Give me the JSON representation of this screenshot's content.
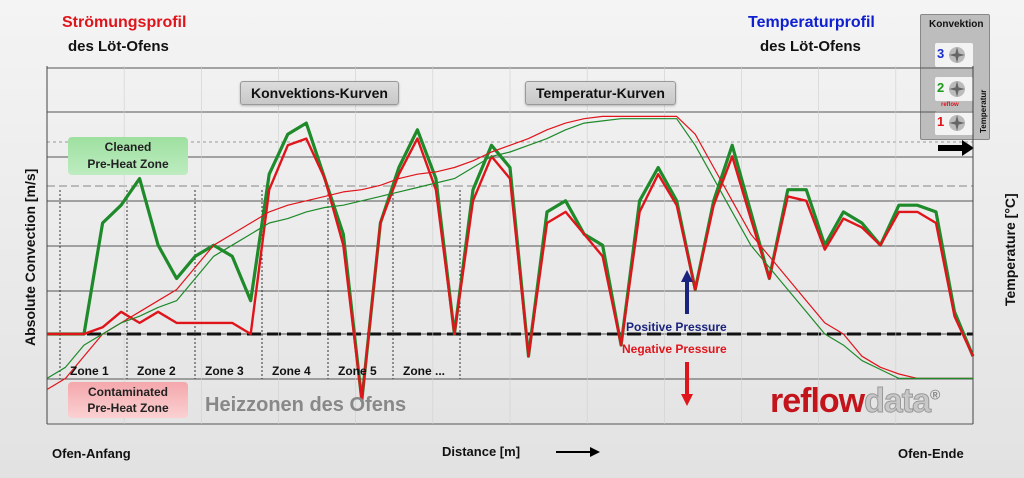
{
  "header": {
    "left_title": "Strömungsprofil",
    "left_sub": "des Löt-Ofens",
    "right_title": "Temperaturprofil",
    "right_sub": "des Löt-Ofens"
  },
  "legend_box": {
    "title": "Konvektion",
    "side_label": "Temperatur",
    "fans": [
      "3",
      "2",
      "1"
    ],
    "mid_label": "reflow",
    "colors": [
      "#1a2fd0",
      "#1e9a1e",
      "#e0141b"
    ]
  },
  "callouts": {
    "convection": "Konvektions-Kurven",
    "temperature": "Temperatur-Kurven",
    "cleaned": [
      "Cleaned",
      "Pre-Heat Zone"
    ],
    "contaminated": [
      "Contaminated",
      "Pre-Heat Zone"
    ],
    "heizzonen": "Heizzonen des Ofens",
    "positive": "Positive Pressure",
    "negative": "Negative Pressure"
  },
  "brand": {
    "part1": "reflow",
    "part2": "data",
    "mark": "®"
  },
  "footer": {
    "start": "Ofen-Anfang",
    "distance": "Distance [m]",
    "end": "Ofen-Ende"
  },
  "chart_data": {
    "type": "line",
    "xlabel": "Distance [m]",
    "ylabel": "Absolute Convection [m/s]",
    "ylabel_right": "Temperature  [°C]",
    "zones": [
      "Zone 1",
      "Zone 2",
      "Zone 3",
      "Zone 4",
      "Zone 5",
      "Zone ..."
    ],
    "colors": {
      "green": "#1e8a2a",
      "red": "#e0141b"
    },
    "x": [
      0,
      2,
      4,
      6,
      8,
      10,
      12,
      14,
      16,
      18,
      20,
      22,
      24,
      26,
      28,
      30,
      32,
      34,
      36,
      38,
      40,
      42,
      44,
      46,
      48,
      50,
      52,
      54,
      56,
      58,
      60,
      62,
      64,
      66,
      68,
      70,
      72,
      74,
      76,
      78,
      80,
      82,
      84,
      86,
      88,
      90,
      92,
      94,
      96,
      98,
      100
    ],
    "series": [
      {
        "values": [
          0,
          0,
          0,
          50,
          58,
          70,
          40,
          25,
          35,
          40,
          35,
          15,
          72,
          90,
          95,
          70,
          45,
          -30,
          50,
          75,
          92,
          70,
          0,
          65,
          85,
          75,
          -10,
          55,
          60,
          45,
          40,
          -5,
          60,
          75,
          60,
          20,
          60,
          85,
          55,
          25,
          65,
          65,
          40,
          55,
          50,
          40,
          58,
          58,
          55,
          10,
          -10
        ]
      },
      {
        "values": [
          0,
          0,
          0,
          3,
          10,
          5,
          10,
          5,
          5,
          5,
          5,
          0,
          65,
          85,
          88,
          70,
          40,
          -30,
          50,
          72,
          88,
          65,
          0,
          60,
          80,
          70,
          -10,
          50,
          55,
          45,
          35,
          -5,
          55,
          72,
          58,
          20,
          58,
          80,
          52,
          25,
          62,
          60,
          38,
          52,
          48,
          40,
          55,
          55,
          50,
          8,
          -10
        ]
      },
      {
        "values": [
          -25,
          -20,
          -10,
          0,
          5,
          10,
          15,
          20,
          30,
          40,
          45,
          50,
          55,
          58,
          60,
          62,
          64,
          65,
          67,
          70,
          72,
          73,
          75,
          78,
          82,
          85,
          88,
          92,
          95,
          97,
          98,
          98,
          98,
          98,
          98,
          90,
          75,
          60,
          45,
          35,
          25,
          15,
          5,
          0,
          -10,
          -15,
          -18,
          -20,
          -20,
          -20,
          -20
        ]
      },
      {
        "values": [
          -20,
          -15,
          -5,
          0,
          5,
          8,
          12,
          15,
          25,
          35,
          40,
          45,
          50,
          52,
          55,
          57,
          58,
          60,
          62,
          64,
          66,
          68,
          70,
          75,
          80,
          82,
          85,
          88,
          92,
          95,
          96,
          97,
          97,
          97,
          97,
          85,
          70,
          55,
          40,
          30,
          20,
          10,
          0,
          -5,
          -12,
          -16,
          -20,
          -20,
          -20,
          -20,
          -20
        ]
      }
    ]
  }
}
